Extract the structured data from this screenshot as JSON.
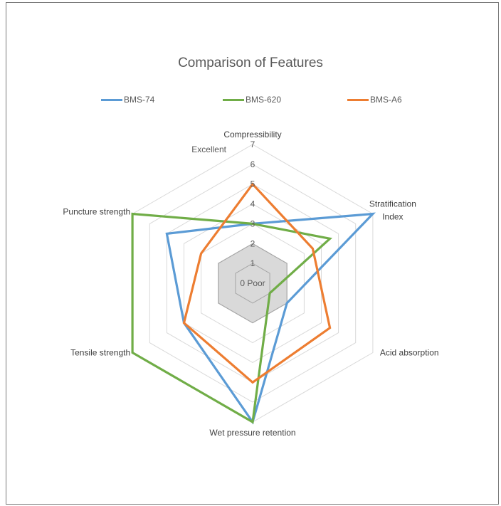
{
  "chart_data": {
    "type": "radar",
    "title": "Comparison of Features",
    "axes": [
      "Compressibility",
      "Stratification Index",
      "Acid absorption",
      "Wet pressure retention",
      "Tensile strength",
      "Puncture strength"
    ],
    "axis_label_lines": [
      [
        "Compressibility"
      ],
      [
        "Stratification",
        "Index"
      ],
      [
        "Acid absorption"
      ],
      [
        "Wet pressure retention"
      ],
      [
        "Tensile strength"
      ],
      [
        "Puncture strength"
      ]
    ],
    "r_range": [
      0,
      7
    ],
    "ticks": [
      "0 Poor",
      "1",
      "2",
      "3",
      "4",
      "5",
      "6",
      "7"
    ],
    "max_label": "Excellent",
    "legend_position": "top",
    "series": [
      {
        "name": "BMS-74",
        "color": "#5b9bd5",
        "values": [
          3,
          7,
          2,
          7,
          4,
          5
        ]
      },
      {
        "name": "BMS-620",
        "color": "#70ad47",
        "values": [
          3,
          4.5,
          1,
          7,
          7,
          7
        ]
      },
      {
        "name": "BMS-A6",
        "color": "#ed7d31",
        "values": [
          5,
          3.5,
          4.5,
          5,
          4,
          3
        ]
      }
    ],
    "shaded_region_max": 2,
    "colors": {
      "grid": "#d9d9d9",
      "shade_fill": "#d9d9d9",
      "shade_stroke": "#a6a6a6"
    }
  }
}
